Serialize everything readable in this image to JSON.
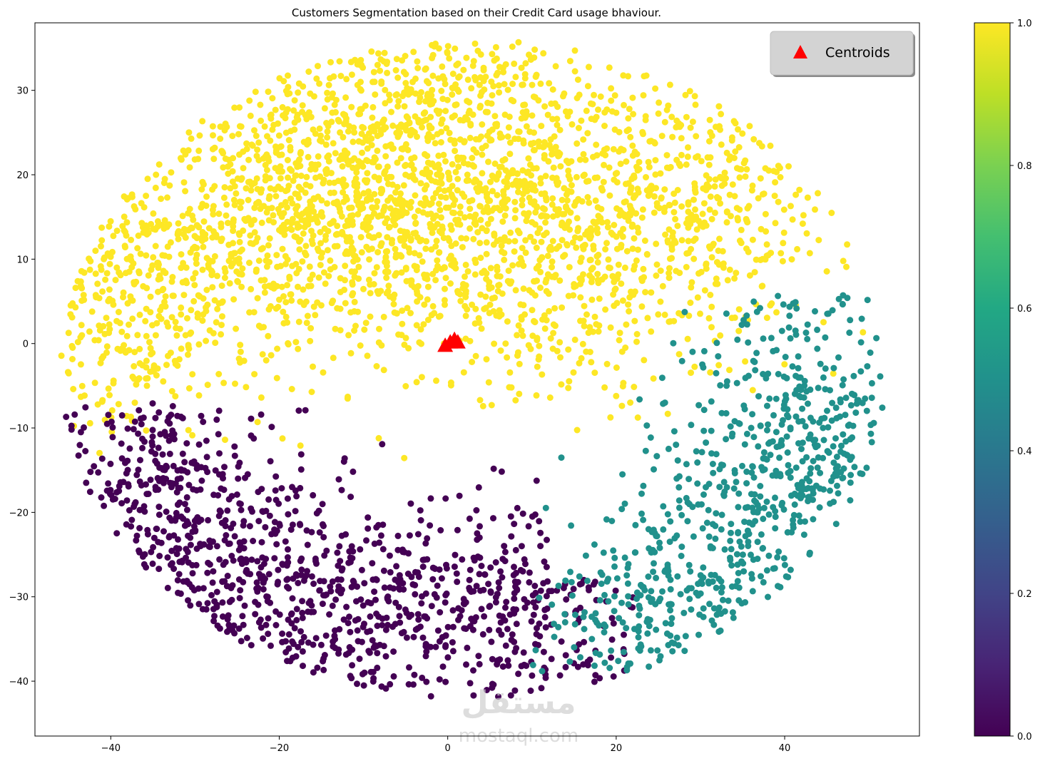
{
  "chart_data": {
    "type": "scatter",
    "title": "Customers Segmentation based on their Credit Card usage bhaviour.",
    "xlabel": "",
    "ylabel": "",
    "xlim": [
      -49,
      56
    ],
    "ylim": [
      -46.5,
      38
    ],
    "xticks": [
      -40,
      -20,
      0,
      20,
      40
    ],
    "xtick_labels": [
      "−40",
      "−20",
      "0",
      "20",
      "40"
    ],
    "yticks": [
      30,
      20,
      10,
      0,
      -10,
      -20,
      -30,
      -40
    ],
    "ytick_labels": [
      "30",
      "20",
      "10",
      "0",
      "−10",
      "−20",
      "−30",
      "−40"
    ],
    "grid": false,
    "colormap": "viridis",
    "colorbar": {
      "range": [
        0,
        1
      ],
      "ticks": [
        0.0,
        0.2,
        0.4,
        0.6,
        0.8,
        1.0
      ],
      "tick_labels": [
        "0.0",
        "0.2",
        "0.4",
        "0.6",
        "0.8",
        "1.0"
      ]
    },
    "legend": {
      "placement": "top-right",
      "entries": [
        "Centroids"
      ]
    },
    "clusters": [
      {
        "value": 1.0,
        "color": "#fde725",
        "approx_points": 5200,
        "centers": [
          [
            -38,
            5
          ],
          [
            -20,
            18
          ],
          [
            28,
            17
          ],
          [
            -8,
            15
          ],
          [
            12,
            12
          ],
          [
            0,
            26
          ]
        ],
        "extent_note": "upper region, y approx -10 to 34"
      },
      {
        "value": 0.0,
        "color": "#440154",
        "approx_points": 1900,
        "centers": [
          [
            -35,
            -15
          ],
          [
            -28,
            -27
          ],
          [
            -18,
            -33
          ],
          [
            -5,
            -30
          ],
          [
            10,
            -33
          ]
        ],
        "extent_note": "lower-left region, y approx -42 to -8"
      },
      {
        "value": 0.5,
        "color": "#21918c",
        "approx_points": 1300,
        "centers": [
          [
            43,
            -6
          ],
          [
            42,
            -12
          ],
          [
            35,
            -20
          ],
          [
            30,
            -30
          ],
          [
            22,
            -33
          ]
        ],
        "extent_note": "lower-right region, x approx 10 to 50"
      }
    ],
    "centroids": {
      "marker": "triangle",
      "color": "#ff0000",
      "points": [
        [
          -0.3,
          -0.2
        ],
        [
          0.3,
          0.2
        ],
        [
          0.8,
          0.5
        ],
        [
          1.2,
          0.2
        ]
      ]
    }
  },
  "watermark": {
    "brand_text": "مستقل",
    "url_text": "mostaql.com"
  }
}
